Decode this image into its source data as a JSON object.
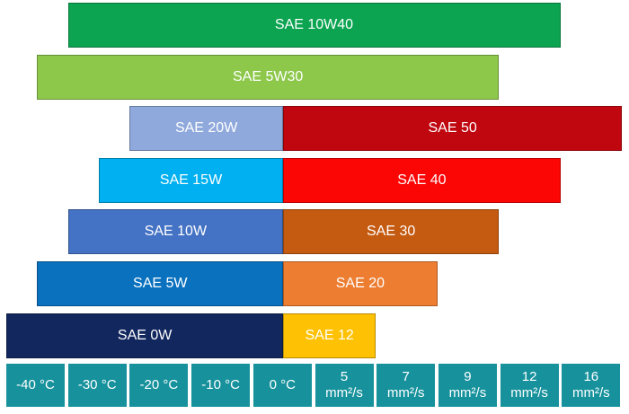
{
  "chart_data": {
    "type": "bar",
    "subtype": "horizontal-range-infographic",
    "title": "",
    "text_color": "#FFFFFF",
    "axis": {
      "position": "bottom",
      "cell_color": "#17929D",
      "text_color": "#FFFFFF",
      "cells": [
        {
          "label": "-40 °C",
          "unit": ""
        },
        {
          "label": "-30 °C",
          "unit": ""
        },
        {
          "label": "-20 °C",
          "unit": ""
        },
        {
          "label": "-10 °C",
          "unit": ""
        },
        {
          "label": "0 °C",
          "unit": ""
        },
        {
          "label": "5",
          "unit": "mm²/s"
        },
        {
          "label": "7",
          "unit": "mm²/s"
        },
        {
          "label": "9",
          "unit": "mm²/s"
        },
        {
          "label": "12",
          "unit": "mm²/s"
        },
        {
          "label": "16",
          "unit": "mm²/s"
        }
      ]
    },
    "scale_note": "bar spans are in axis slot units 0-10 across the ten bottom cells",
    "bars": [
      {
        "segments": [
          {
            "label": "SAE 10W40",
            "color": "#0CA451",
            "start": 1,
            "end": 9
          }
        ]
      },
      {
        "segments": [
          {
            "label": "SAE 5W30",
            "color": "#8DC84B",
            "start": 0.5,
            "end": 8
          }
        ]
      },
      {
        "segments": [
          {
            "label": "SAE 20W",
            "color": "#8FA9DC",
            "start": 2,
            "end": 4.5
          },
          {
            "label": "SAE 50",
            "color": "#C00710",
            "start": 4.5,
            "end": 10
          }
        ]
      },
      {
        "segments": [
          {
            "label": "SAE 15W",
            "color": "#00B0F0",
            "start": 1.5,
            "end": 4.5
          },
          {
            "label": "SAE 40",
            "color": "#FB0505",
            "start": 4.5,
            "end": 9
          }
        ]
      },
      {
        "segments": [
          {
            "label": "SAE 10W",
            "color": "#4472C4",
            "start": 1,
            "end": 4.5
          },
          {
            "label": "SAE 30",
            "color": "#C55A11",
            "start": 4.5,
            "end": 8
          }
        ]
      },
      {
        "segments": [
          {
            "label": "SAE 5W",
            "color": "#0A71BF",
            "start": 0.5,
            "end": 4.5
          },
          {
            "label": "SAE 20",
            "color": "#ED7D31",
            "start": 4.5,
            "end": 7
          }
        ]
      },
      {
        "segments": [
          {
            "label": "SAE 0W",
            "color": "#12275E",
            "start": 0,
            "end": 4.5
          },
          {
            "label": "SAE 12",
            "color": "#FFC103",
            "start": 4.5,
            "end": 6
          }
        ]
      }
    ]
  }
}
